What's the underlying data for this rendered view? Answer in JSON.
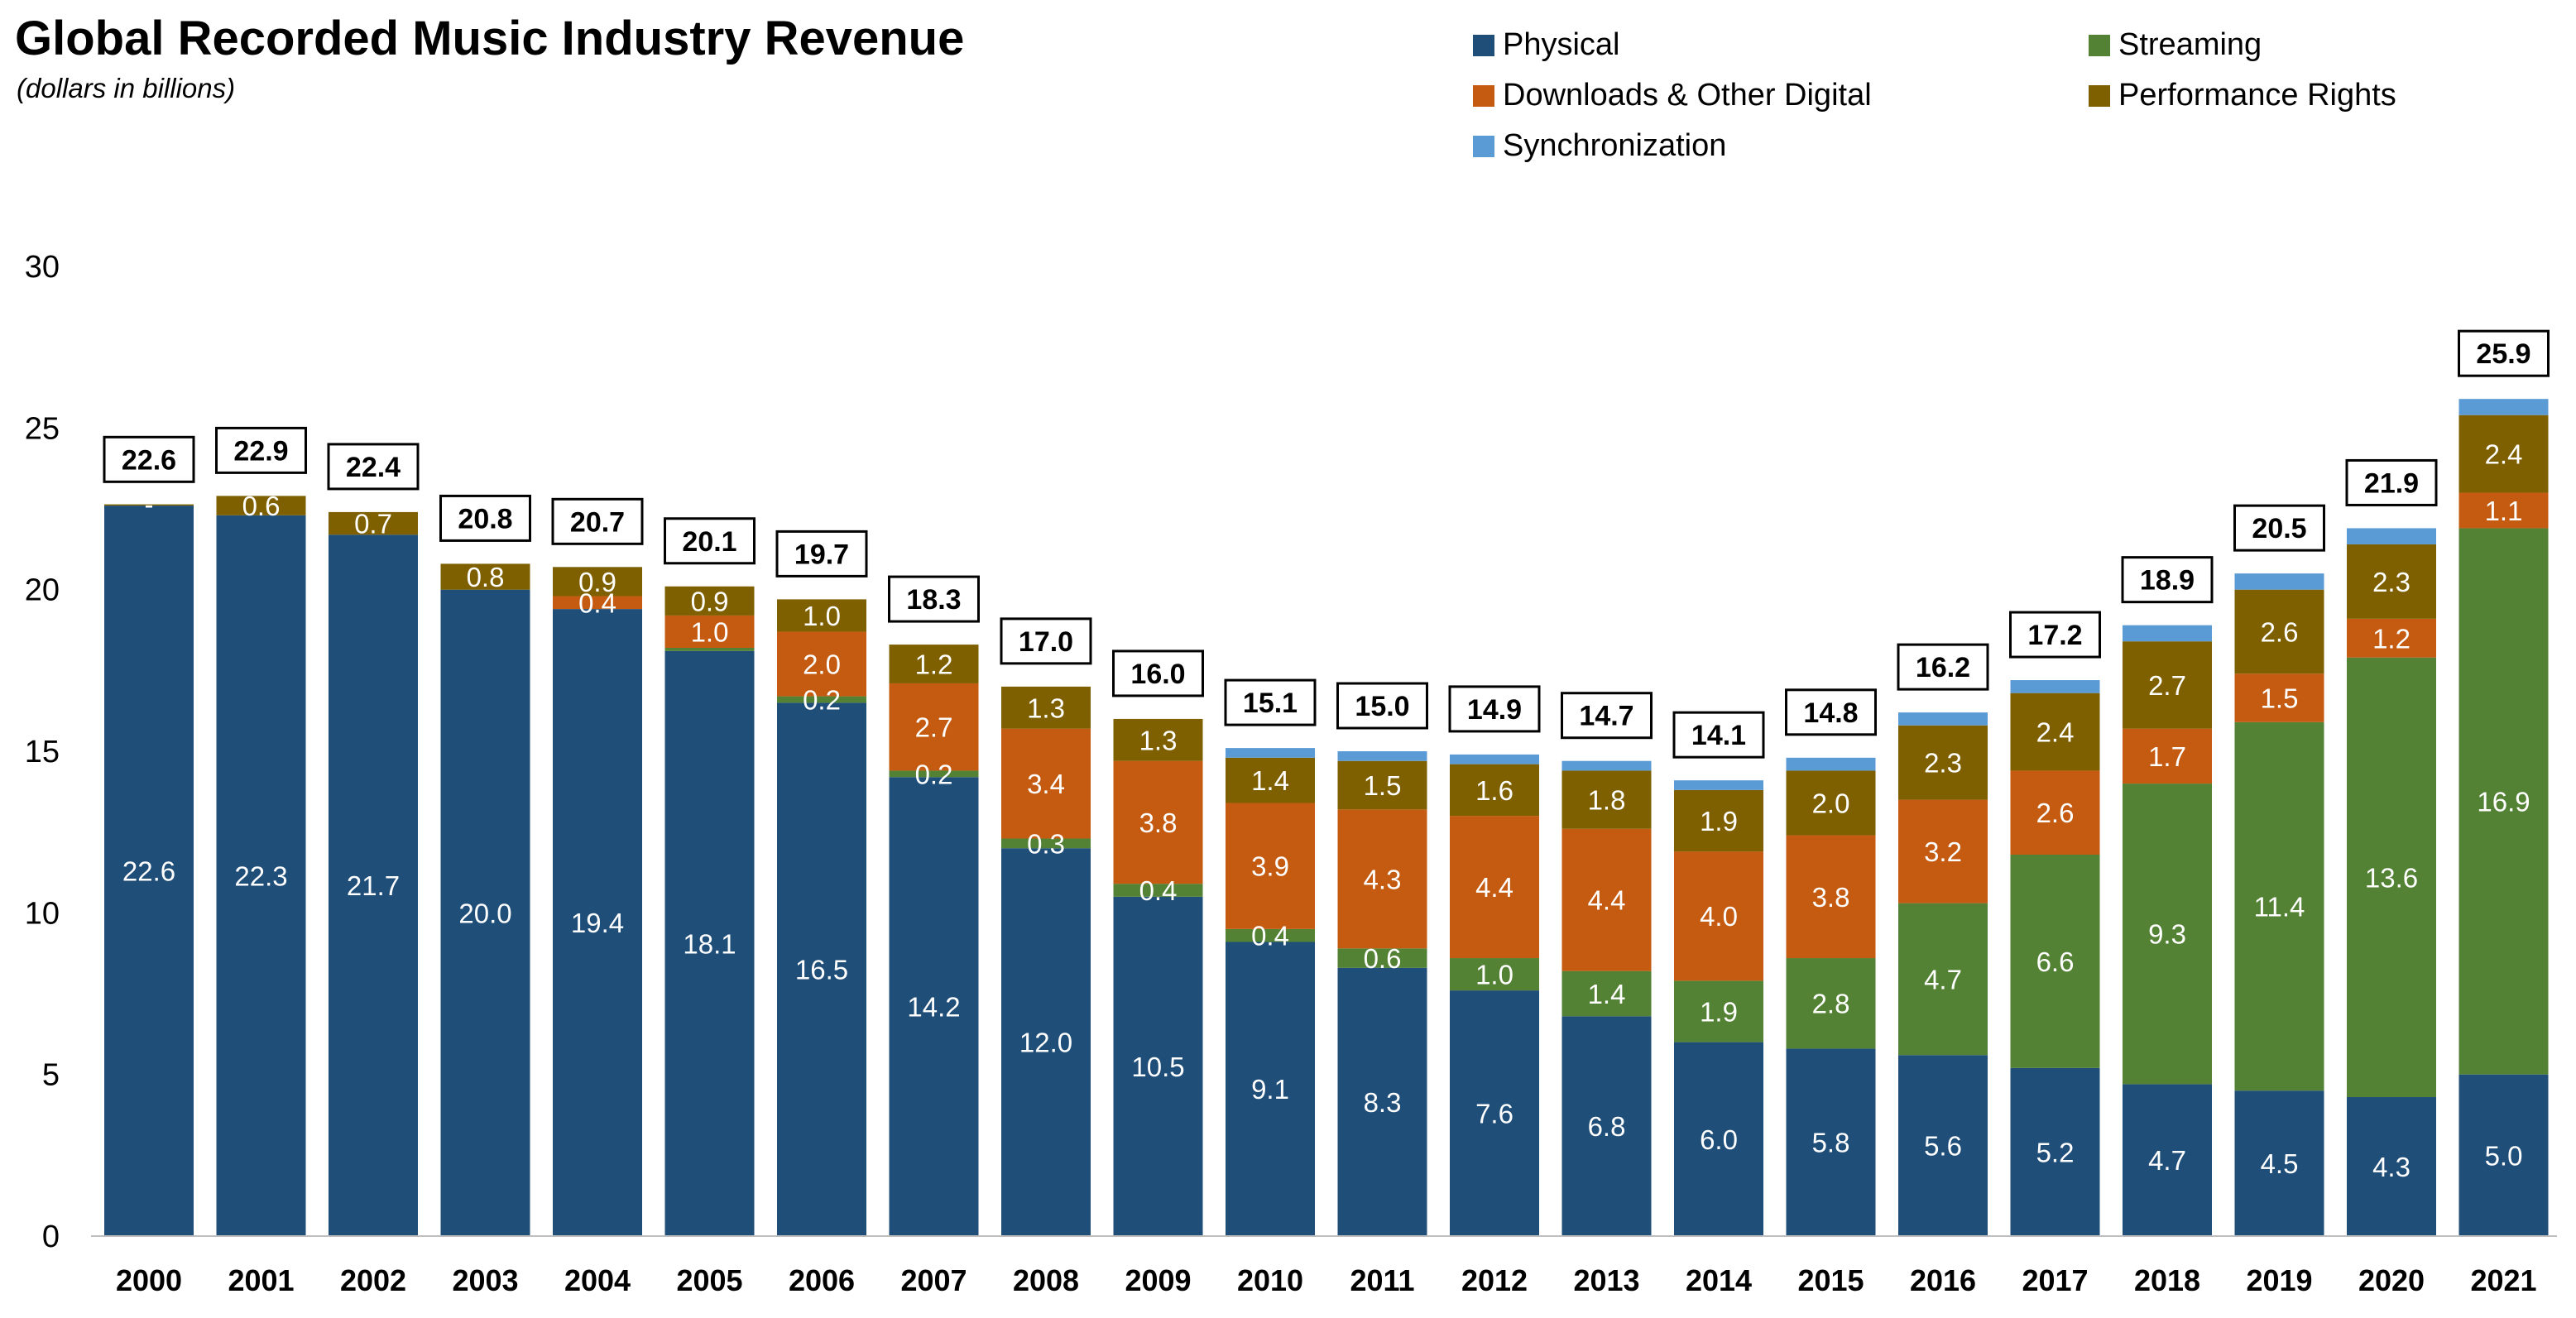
{
  "chart_data": {
    "type": "bar",
    "stacked": true,
    "title": "Global Recorded Music Industry Revenue",
    "subtitle": "(dollars in billions)",
    "ylim": [
      0,
      30
    ],
    "yticks": [
      0,
      5,
      10,
      15,
      20,
      25,
      30
    ],
    "grid": false,
    "legend_position": "top-right",
    "categories": [
      "2000",
      "2001",
      "2002",
      "2003",
      "2004",
      "2005",
      "2006",
      "2007",
      "2008",
      "2009",
      "2010",
      "2011",
      "2012",
      "2013",
      "2014",
      "2015",
      "2016",
      "2017",
      "2018",
      "2019",
      "2020",
      "2021"
    ],
    "totals": [
      "22.6",
      "22.9",
      "22.4",
      "20.8",
      "20.7",
      "20.1",
      "19.7",
      "18.3",
      "17.0",
      "16.0",
      "15.1",
      "15.0",
      "14.9",
      "14.7",
      "14.1",
      "14.8",
      "16.2",
      "17.2",
      "18.9",
      "20.5",
      "21.9",
      "25.9"
    ],
    "series": [
      {
        "name": "Physical",
        "color": "#1F4E79",
        "label_color": "#FFFFFF",
        "values": [
          22.6,
          22.3,
          21.7,
          20.0,
          19.4,
          18.1,
          16.5,
          14.2,
          12.0,
          10.5,
          9.1,
          8.3,
          7.6,
          6.8,
          6.0,
          5.8,
          5.6,
          5.2,
          4.7,
          4.5,
          4.3,
          5.0
        ],
        "labels": [
          "22.6",
          "22.3",
          "21.7",
          "20.0",
          "19.4",
          "18.1",
          "16.5",
          "14.2",
          "12.0",
          "10.5",
          "9.1",
          "8.3",
          "7.6",
          "6.8",
          "6.0",
          "5.8",
          "5.6",
          "5.2",
          "4.7",
          "4.5",
          "4.3",
          "5.0"
        ]
      },
      {
        "name": "Streaming",
        "color": "#548235",
        "label_color": "#FFFFFF",
        "values": [
          0,
          0,
          0,
          0,
          0,
          0.1,
          0.2,
          0.2,
          0.3,
          0.4,
          0.4,
          0.6,
          1.0,
          1.4,
          1.9,
          2.8,
          4.7,
          6.6,
          9.3,
          11.4,
          13.6,
          16.9
        ],
        "labels": [
          "",
          "",
          "",
          "",
          "",
          "",
          "0.2",
          "0.2",
          "0.3",
          "0.4",
          "0.4",
          "0.6",
          "1.0",
          "1.4",
          "1.9",
          "2.8",
          "4.7",
          "6.6",
          "9.3",
          "11.4",
          "13.6",
          "16.9"
        ]
      },
      {
        "name": "Downloads & Other Digital",
        "color": "#C55A11",
        "label_color": "#FFFFFF",
        "values": [
          0,
          0,
          0,
          0,
          0.4,
          1.0,
          2.0,
          2.7,
          3.4,
          3.8,
          3.9,
          4.3,
          4.4,
          4.4,
          4.0,
          3.8,
          3.2,
          2.6,
          1.7,
          1.5,
          1.2,
          1.1
        ],
        "labels": [
          "",
          "",
          "",
          "",
          "0.4",
          "1.0",
          "2.0",
          "2.7",
          "3.4",
          "3.8",
          "3.9",
          "4.3",
          "4.4",
          "4.4",
          "4.0",
          "3.8",
          "3.2",
          "2.6",
          "1.7",
          "1.5",
          "1.2",
          "1.1"
        ]
      },
      {
        "name": "Performance Rights",
        "color": "#7F6000",
        "label_color": "#FFFFFF",
        "values": [
          0.02,
          0.6,
          0.7,
          0.8,
          0.9,
          0.9,
          1.0,
          1.2,
          1.3,
          1.3,
          1.4,
          1.5,
          1.6,
          1.8,
          1.9,
          2.0,
          2.3,
          2.4,
          2.7,
          2.6,
          2.3,
          2.4
        ],
        "labels": [
          "-",
          "0.6",
          "0.7",
          "0.8",
          "0.9",
          "0.9",
          "1.0",
          "1.2",
          "1.3",
          "1.3",
          "1.4",
          "1.5",
          "1.6",
          "1.8",
          "1.9",
          "2.0",
          "2.3",
          "2.4",
          "2.7",
          "2.6",
          "2.3",
          "2.4"
        ]
      },
      {
        "name": "Synchronization",
        "color": "#5B9BD5",
        "label_color": "#FFFFFF",
        "values": [
          0,
          0,
          0,
          0,
          0,
          0,
          0,
          0,
          0,
          0,
          0.3,
          0.3,
          0.3,
          0.3,
          0.3,
          0.4,
          0.4,
          0.4,
          0.5,
          0.5,
          0.5,
          0.5
        ],
        "labels": [
          "",
          "",
          "",
          "",
          "",
          "",
          "",
          "",
          "",
          "",
          "",
          "",
          "",
          "",
          "",
          "",
          "",
          "",
          "",
          "",
          "",
          ""
        ]
      }
    ],
    "legend": [
      {
        "name": "Physical",
        "color": "#1F4E79"
      },
      {
        "name": "Streaming",
        "color": "#548235"
      },
      {
        "name": "Downloads & Other Digital",
        "color": "#C55A11"
      },
      {
        "name": "Performance Rights",
        "color": "#7F6000"
      },
      {
        "name": "Synchronization",
        "color": "#5B9BD5"
      }
    ]
  }
}
